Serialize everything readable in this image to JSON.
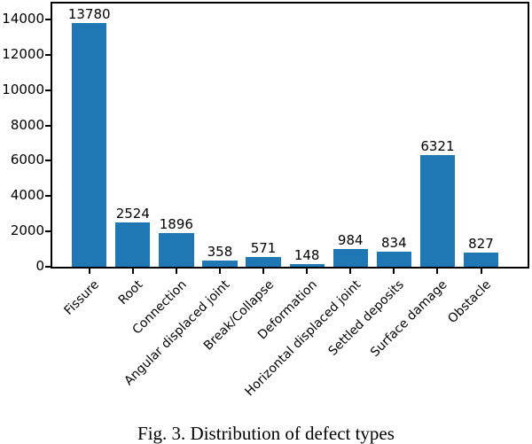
{
  "figure": {
    "caption": "Fig. 3. Distribution of defect types"
  },
  "chart_data": {
    "type": "bar",
    "title": "",
    "xlabel": "",
    "ylabel": "",
    "categories": [
      "Fissure",
      "Root",
      "Connection",
      "Angular displaced joint",
      "Break/Collapse",
      "Deformation",
      "Horizontal displaced joint",
      "Settled deposits",
      "Surface damage",
      "Obstacle"
    ],
    "values": [
      13780,
      2524,
      1896,
      358,
      571,
      148,
      984,
      834,
      6321,
      827
    ],
    "value_labels_shown": true,
    "bar_color": "#1f77b4",
    "axis_color": "#000000",
    "text_color": "#000000",
    "background_color": "#ffffff",
    "ylim": [
      0,
      14900
    ],
    "yticks": [
      0,
      2000,
      4000,
      6000,
      8000,
      10000,
      12000,
      14000
    ],
    "xtick_rotation_deg": 45,
    "grid": false,
    "legend": null
  }
}
